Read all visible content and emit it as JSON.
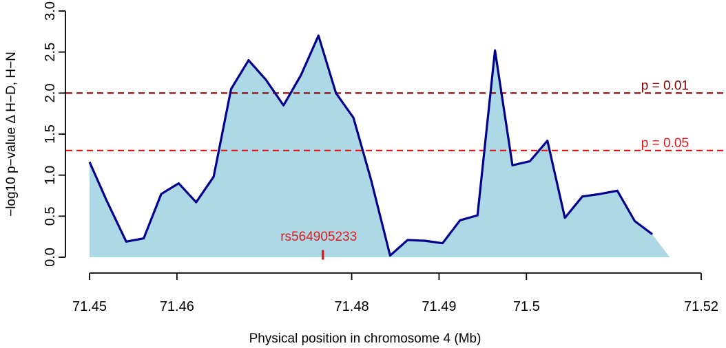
{
  "chart_data": {
    "type": "area",
    "title": "",
    "xlabel": "Physical position in chromosome 4 (Mb)",
    "ylabel": "−log10 p−value Δ H−D, H−N",
    "xlim": [
      71.45,
      71.52
    ],
    "ylim": [
      0,
      3.0
    ],
    "x_ticks": [
      71.45,
      71.46,
      71.48,
      71.49,
      71.5,
      71.52
    ],
    "x_tick_labels": [
      "71.45",
      "71.46",
      "71.48",
      "71.49",
      "71.5",
      "71.52"
    ],
    "y_ticks": [
      0,
      0.5,
      1,
      1.5,
      2,
      2.5,
      3
    ],
    "y_tick_labels": [
      "0.0",
      "0.5",
      "1.0",
      "1.5",
      "2.0",
      "2.5",
      "3.0"
    ],
    "grid": false,
    "colors": {
      "line": "#00008b",
      "fill": "#add8e6",
      "threshold_001": "#8b0000",
      "threshold_005": "#e31a1c",
      "snp": "#e31a1c",
      "axis": "#000000"
    },
    "series": [
      {
        "x": [
          71.45,
          71.452,
          71.4542,
          71.4562,
          71.4582,
          71.4602,
          71.4622,
          71.4642,
          71.4662,
          71.4682,
          71.4702,
          71.4722,
          71.4742,
          71.4762,
          71.4782,
          71.4802,
          71.4822,
          71.4844,
          71.4864,
          71.4884,
          71.4904,
          71.4924,
          71.4944,
          71.4964,
          71.4984,
          71.5004,
          71.5024,
          71.5044,
          71.5064,
          71.5084,
          71.5104,
          71.5124,
          71.5144,
          71.5164,
          71.5184,
          71.52
        ],
        "values": [
          1.16,
          0.68,
          0.19,
          0.23,
          0.77,
          0.9,
          0.67,
          0.98,
          2.05,
          2.4,
          2.16,
          1.85,
          2.22,
          2.7,
          2.0,
          1.7,
          0.95,
          0.02,
          0.21,
          0.2,
          0.17,
          0.45,
          0.51,
          2.52,
          1.12,
          1.17,
          1.42,
          0.48,
          0.74,
          0.77,
          0.81,
          0.44,
          0.28,
          0.0,
          0.0,
          0.0
        ]
      }
    ],
    "thresholds": [
      {
        "label": "p = 0.01",
        "value": 2.0
      },
      {
        "label": "p = 0.05",
        "value": 1.3
      }
    ],
    "snp_marker": {
      "label": "rs564905233",
      "x": 71.4767
    }
  }
}
